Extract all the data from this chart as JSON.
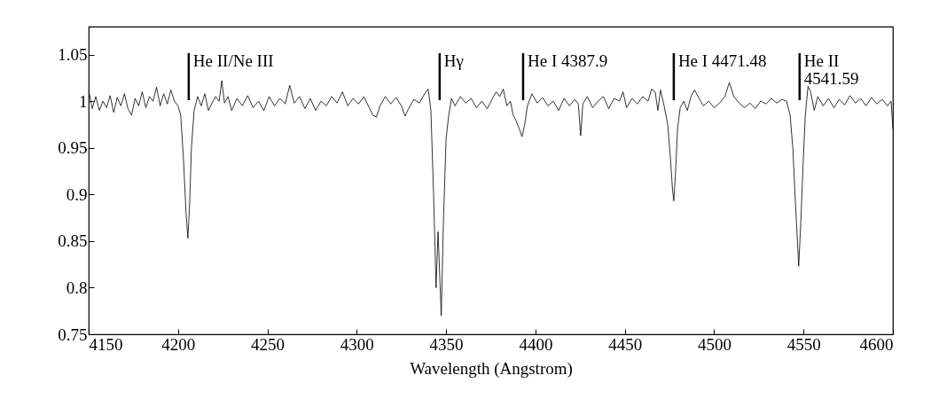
{
  "chart_data": {
    "type": "line",
    "xlabel": "Wavelength (Angstrom)",
    "xlim": [
      4150,
      4600
    ],
    "xticks": [
      4150,
      4200,
      4250,
      4300,
      4350,
      4400,
      4450,
      4500,
      4550,
      4600
    ],
    "ylim": [
      0.75,
      1.08
    ],
    "yticks": [
      0.75,
      0.8,
      0.85,
      0.9,
      0.95,
      1,
      1.05
    ],
    "grid": false,
    "marker": "none",
    "line_style": "solid",
    "series": [
      {
        "color": "#000000",
        "x": [
          4150,
          4152,
          4154,
          4156,
          4158,
          4160,
          4162,
          4164,
          4166,
          4168,
          4170,
          4172,
          4174,
          4176,
          4178,
          4180,
          4182,
          4184,
          4186,
          4188,
          4190,
          4192,
          4194,
          4196,
          4198,
          4200,
          4201.5,
          4203,
          4204.5,
          4205.5,
          4206.5,
          4207.5,
          4209,
          4211,
          4213,
          4215,
          4217,
          4219,
          4221,
          4223,
          4224.5,
          4226,
          4228,
          4230,
          4233,
          4236,
          4239,
          4242,
          4245,
          4248,
          4251,
          4254,
          4257,
          4260,
          4262.5,
          4265,
          4268,
          4271,
          4274,
          4277,
          4280,
          4283,
          4286,
          4289,
          4292,
          4295,
          4298,
          4301,
          4304,
          4307,
          4309,
          4311,
          4313,
          4316,
          4319,
          4322,
          4325,
          4327,
          4329,
          4332,
          4335,
          4338,
          4340,
          4341.5,
          4343,
          4344.4,
          4345.5,
          4347.3,
          4348.5,
          4350,
          4351.5,
          4353,
          4355,
          4358,
          4361,
          4364,
          4367,
          4370,
          4373,
          4376,
          4378,
          4380,
          4382,
          4384,
          4386,
          4387.5,
          4389,
          4391,
          4392.5,
          4394,
          4395.5,
          4398,
          4401,
          4404,
          4407,
          4410,
          4413,
          4416,
          4419,
          4422,
          4424,
          4425.3,
          4426.5,
          4429,
          4432,
          4435,
          4438,
          4441,
          4444,
          4447,
          4449,
          4451,
          4454,
          4457,
          4460,
          4463,
          4465,
          4467,
          4468.5,
          4470,
          4472,
          4474,
          4475.5,
          4476.7,
          4477.4,
          4478.3,
          4479.5,
          4481,
          4483,
          4485,
          4487,
          4489,
          4491,
          4494,
          4497,
          4500,
          4503,
          4506,
          4508.5,
          4511,
          4514,
          4517,
          4520,
          4523,
          4526,
          4529,
          4532,
          4535,
          4538,
          4540.5,
          4542.5,
          4544,
          4545.5,
          4547.3,
          4548.5,
          4549.7,
          4551,
          4552.5,
          4554,
          4556,
          4558,
          4561,
          4564,
          4567,
          4570,
          4573,
          4576,
          4579,
          4582,
          4585,
          4588,
          4591,
          4594,
          4597,
          4599,
          4600
        ],
        "values": [
          1.012,
          0.992,
          1.005,
          0.99,
          1.0,
          0.993,
          1.006,
          0.988,
          1.004,
          0.995,
          1.008,
          0.992,
          0.985,
          1.003,
          0.995,
          1.01,
          0.993,
          1.005,
          1.0,
          1.015,
          0.995,
          1.008,
          0.997,
          1.012,
          1.0,
          0.995,
          0.985,
          0.94,
          0.88,
          0.853,
          0.89,
          0.95,
          0.99,
          1.005,
          0.995,
          1.008,
          0.99,
          0.998,
          1.005,
          1.0,
          1.022,
          0.998,
          1.005,
          0.99,
          1.003,
          0.995,
          1.006,
          0.993,
          1.0,
          0.99,
          1.005,
          0.995,
          1.003,
          0.997,
          1.017,
          0.998,
          1.005,
          0.992,
          1.003,
          0.99,
          1.0,
          0.995,
          1.005,
          0.998,
          1.01,
          0.995,
          1.003,
          0.997,
          1.005,
          0.993,
          0.985,
          0.983,
          0.995,
          1.005,
          0.997,
          1.004,
          0.995,
          0.984,
          0.992,
          1.002,
          0.998,
          1.008,
          1.013,
          0.99,
          0.9,
          0.8,
          0.86,
          0.77,
          0.87,
          0.96,
          0.985,
          1.003,
          0.995,
          1.005,
          0.998,
          1.003,
          0.993,
          1.0,
          0.992,
          1.003,
          1.01,
          1.005,
          1.013,
          0.995,
          1.0,
          0.985,
          0.98,
          0.97,
          0.962,
          0.975,
          0.995,
          1.008,
          0.998,
          1.004,
          0.995,
          1.0,
          0.99,
          1.003,
          0.995,
          1.002,
          0.997,
          0.963,
          0.997,
          1.005,
          0.993,
          1.0,
          1.005,
          0.992,
          1.003,
          1.0,
          1.01,
          0.993,
          1.003,
          0.997,
          1.005,
          1.0,
          1.013,
          1.01,
          0.99,
          1.012,
          0.995,
          0.975,
          0.94,
          0.905,
          0.893,
          0.92,
          0.97,
          0.993,
          1.0,
          0.99,
          1.005,
          1.012,
          1.005,
          0.995,
          1.0,
          0.993,
          0.998,
          1.005,
          1.02,
          1.005,
          0.998,
          0.993,
          0.998,
          0.992,
          1.0,
          0.997,
          1.003,
          0.998,
          1.002,
          1.0,
          0.985,
          0.95,
          0.89,
          0.823,
          0.87,
          0.93,
          0.985,
          1.016,
          1.01,
          0.99,
          1.005,
          0.995,
          1.003,
          0.993,
          1.002,
          0.996,
          1.006,
          0.998,
          1.003,
          0.995,
          1.004,
          0.997,
          1.002,
          0.995,
          1.0,
          0.97
        ]
      }
    ],
    "ref_lines": [
      {
        "axis": "x",
        "value": 4206,
        "label": "He II/Ne III"
      },
      {
        "axis": "x",
        "value": 4346.4,
        "label": "Hγ"
      },
      {
        "axis": "x",
        "value": 4393.1,
        "label": "He I 4387.9"
      },
      {
        "axis": "x",
        "value": 4477.4,
        "label": "He I 4471.48"
      },
      {
        "axis": "x",
        "value": 4547.8,
        "label": "He II\n4541.59"
      }
    ]
  }
}
